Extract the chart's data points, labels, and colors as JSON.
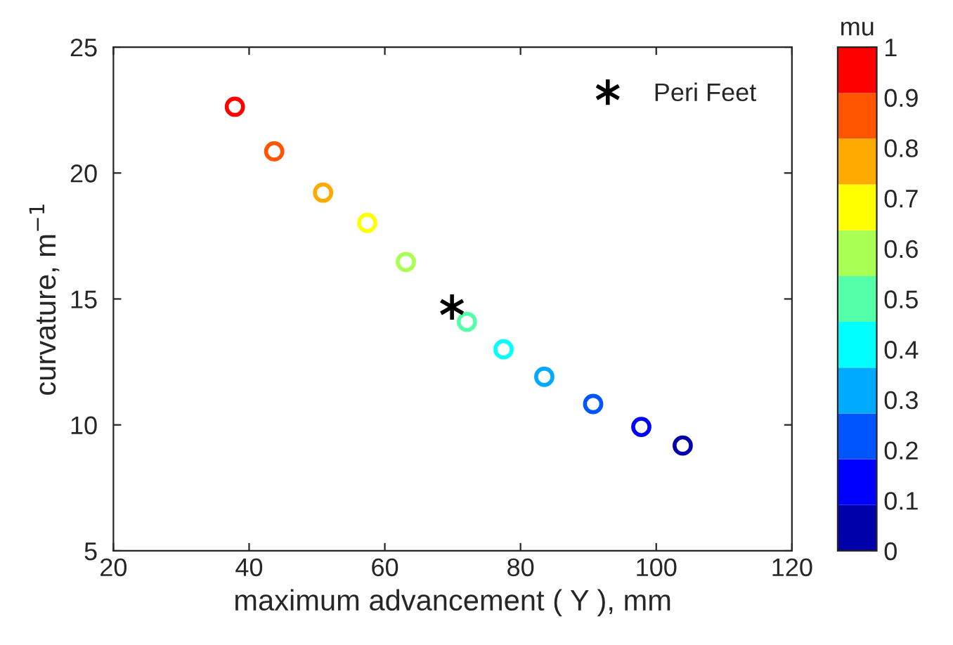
{
  "chart_data": {
    "type": "scatter",
    "xlabel": "maximum advancement ( Y ), mm",
    "ylabel": "curvature, m$^{−1}$",
    "clabel": "mu",
    "xlim": [
      20,
      120
    ],
    "xticks": [
      20,
      40,
      60,
      80,
      100,
      120
    ],
    "ylim": [
      5,
      25
    ],
    "yticks": [
      5,
      10,
      15,
      20,
      25
    ],
    "clim": [
      0,
      1
    ],
    "cticks": [
      0,
      0.1,
      0.2,
      0.3,
      0.4,
      0.5,
      0.6,
      0.7,
      0.8,
      0.9,
      1
    ],
    "grid": false,
    "legend": "top right",
    "series": [
      {
        "marker": "circle",
        "x": [
          37.9,
          43.7,
          50.9,
          57.4,
          63.1,
          72.1,
          77.5,
          83.5,
          90.7,
          97.8,
          103.9
        ],
        "values": [
          22.63,
          20.86,
          19.22,
          18.02,
          16.47,
          14.09,
          13.0,
          11.91,
          10.83,
          9.92,
          9.18
        ],
        "cvalues": [
          1.0,
          0.9,
          0.8,
          0.7,
          0.6,
          0.5,
          0.4,
          0.3,
          0.2,
          0.1,
          0.0
        ],
        "colors": [
          "#ff0000",
          "#ff5500",
          "#ffaa00",
          "#ffff00",
          "#aaff55",
          "#55ffaa",
          "#00ffff",
          "#00aaff",
          "#0055ff",
          "#0000ff",
          "#0000aa"
        ]
      },
      {
        "name": "Peri Feet",
        "color": "#000000",
        "marker": "cross",
        "x": [
          69.9
        ],
        "values": [
          14.68
        ]
      }
    ]
  }
}
